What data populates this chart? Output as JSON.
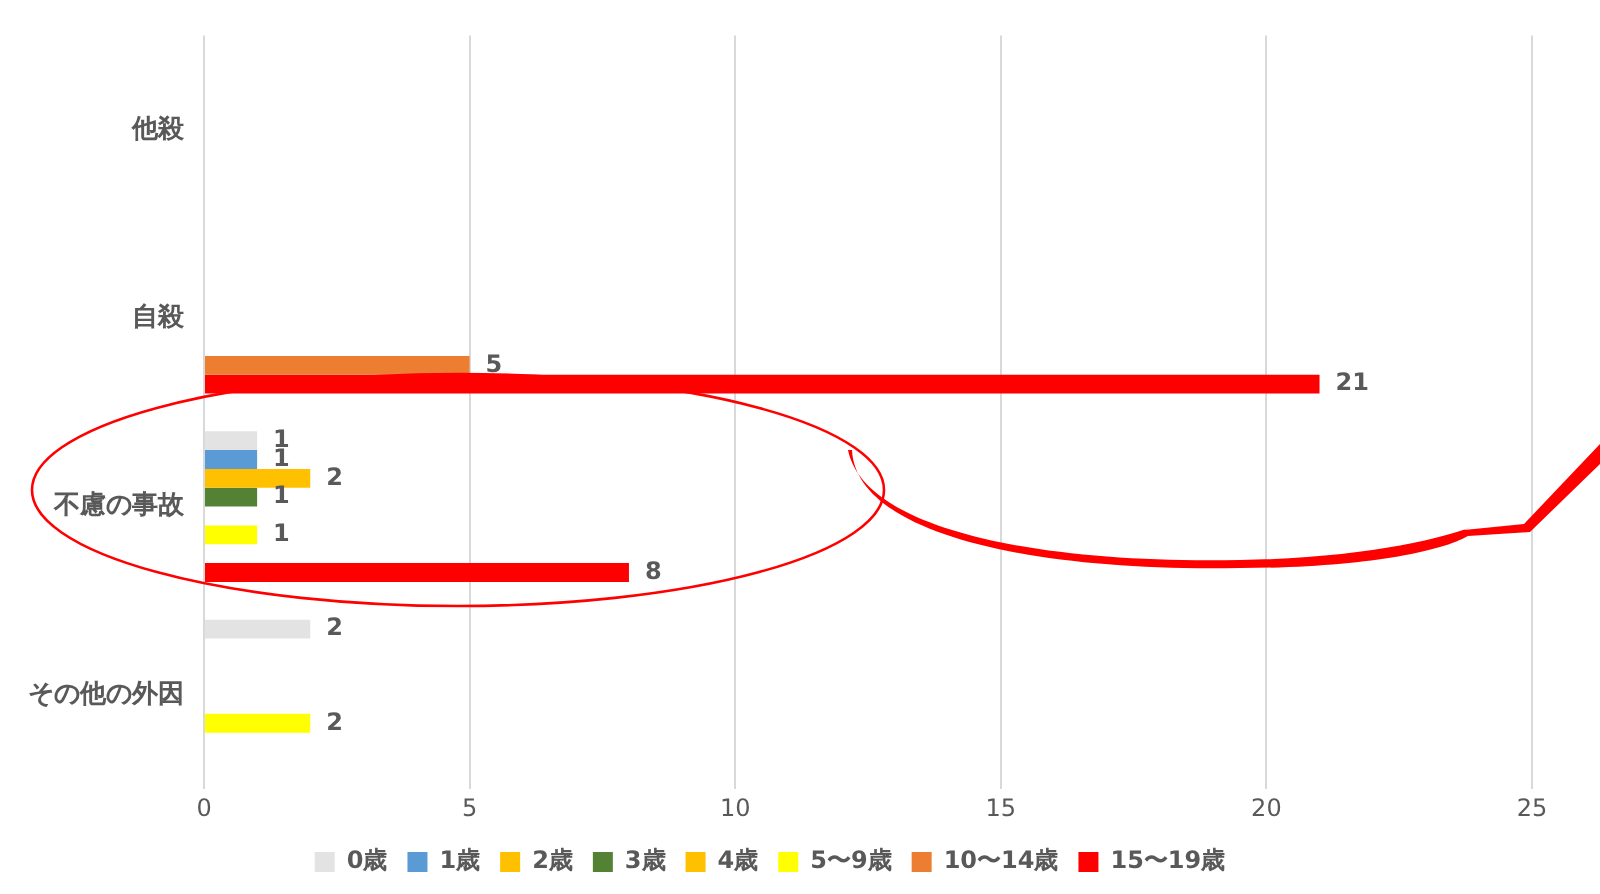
{
  "chart_data": {
    "type": "bar",
    "orientation": "horizontal",
    "categories": [
      "他殺",
      "自殺",
      "不慮の事故",
      "その他の外因"
    ],
    "series": [
      {
        "name": "0歳",
        "color": "#e3e3e3",
        "values": [
          null,
          null,
          1,
          2
        ],
        "value_labels": [
          null,
          null,
          "1",
          "2"
        ]
      },
      {
        "name": "1歳",
        "color": "#5b9bd5",
        "values": [
          null,
          null,
          1,
          null
        ],
        "value_labels": [
          null,
          null,
          "1",
          null
        ]
      },
      {
        "name": "2歳",
        "color": "#ffc000",
        "values": [
          null,
          null,
          2,
          null
        ],
        "value_labels": [
          null,
          null,
          "2",
          null
        ]
      },
      {
        "name": "3歳",
        "color": "#548235",
        "values": [
          null,
          null,
          1,
          null
        ],
        "value_labels": [
          null,
          null,
          "1",
          null
        ]
      },
      {
        "name": "4歳",
        "color": "#ffc000",
        "values": [
          null,
          null,
          null,
          null
        ]
      },
      {
        "name": "5〜9歳",
        "color": "#ffff00",
        "values": [
          null,
          null,
          1,
          2
        ],
        "value_labels": [
          null,
          null,
          "1",
          "2"
        ]
      },
      {
        "name": "10〜14歳",
        "color": "#ed7d31",
        "values": [
          null,
          5,
          null,
          null
        ],
        "value_labels": [
          null,
          "5",
          null,
          null
        ]
      },
      {
        "name": "15〜19歳",
        "color": "#ff0000",
        "values": [
          null,
          21,
          8,
          null
        ],
        "value_labels": [
          null,
          "21",
          "8",
          null
        ]
      }
    ],
    "xlim": [
      0,
      25
    ],
    "xticks": [
      0,
      5,
      10,
      15,
      20,
      25
    ],
    "grid": "x",
    "legend": "bottom"
  }
}
